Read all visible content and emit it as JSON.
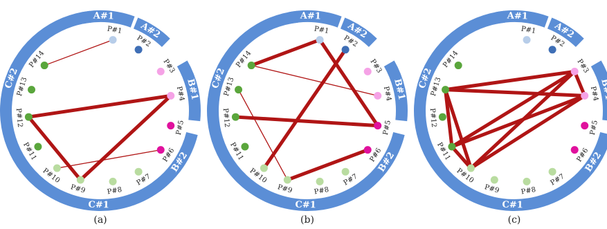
{
  "colors": {
    "band": "#5b8ed6",
    "band_text": "#ffffff",
    "edge": "#b01515",
    "node_green": "#5aa63c",
    "node_lightgreen": "#b9dca0",
    "node_lightblue": "#b7cde9",
    "node_blue": "#3f6fb6",
    "node_pink": "#f5a2e6",
    "node_magenta": "#e0119d"
  },
  "nodes": [
    {
      "id": "P#1",
      "label": "P#1",
      "color": "node_lightblue"
    },
    {
      "id": "P#2",
      "label": "P#2",
      "color": "node_blue"
    },
    {
      "id": "P#3",
      "label": "P#3",
      "color": "node_pink"
    },
    {
      "id": "P#4",
      "label": "P#4",
      "color": "node_pink"
    },
    {
      "id": "P#5",
      "label": "P#5",
      "color": "node_magenta"
    },
    {
      "id": "P#6",
      "label": "P#6",
      "color": "node_magenta"
    },
    {
      "id": "P#7",
      "label": "P#7",
      "color": "node_lightgreen"
    },
    {
      "id": "P#8",
      "label": "P#8",
      "color": "node_lightgreen"
    },
    {
      "id": "P#9",
      "label": "P#9",
      "color": "node_lightgreen"
    },
    {
      "id": "P#10",
      "label": "P#10",
      "color": "node_lightgreen"
    },
    {
      "id": "P#11",
      "label": "P#11",
      "color": "node_green"
    },
    {
      "id": "P#12",
      "label": "P#12",
      "color": "node_green"
    },
    {
      "id": "P#13",
      "label": "P#13",
      "color": "node_green"
    },
    {
      "id": "P#14",
      "label": "P#14",
      "color": "node_green"
    }
  ],
  "groups": [
    {
      "label": "A#1"
    },
    {
      "label": "A#2"
    },
    {
      "label": "B#1"
    },
    {
      "label": "B#2"
    },
    {
      "label": "C#1"
    },
    {
      "label": "C#2"
    }
  ],
  "panels": [
    {
      "caption": "(a)",
      "edges": [
        {
          "from": "P#14",
          "to": "P#1",
          "weight": "thin"
        },
        {
          "from": "P#12",
          "to": "P#4",
          "weight": "thick"
        },
        {
          "from": "P#12",
          "to": "P#9",
          "weight": "thick"
        },
        {
          "from": "P#9",
          "to": "P#4",
          "weight": "thick"
        },
        {
          "from": "P#10",
          "to": "P#6",
          "weight": "thin"
        }
      ]
    },
    {
      "caption": "(b)",
      "edges": [
        {
          "from": "P#14",
          "to": "P#1",
          "weight": "thick"
        },
        {
          "from": "P#1",
          "to": "P#5",
          "weight": "thick"
        },
        {
          "from": "P#12",
          "to": "P#5",
          "weight": "thick"
        },
        {
          "from": "P#2",
          "to": "P#10",
          "weight": "thick"
        },
        {
          "from": "P#13",
          "to": "P#9",
          "weight": "thin"
        },
        {
          "from": "P#14",
          "to": "P#4",
          "weight": "thin"
        },
        {
          "from": "P#9",
          "to": "P#6",
          "weight": "thick"
        }
      ]
    },
    {
      "caption": "(c)",
      "edges": [
        {
          "from": "P#13",
          "to": "P#3",
          "weight": "thick"
        },
        {
          "from": "P#13",
          "to": "P#4",
          "weight": "thick"
        },
        {
          "from": "P#13",
          "to": "P#11",
          "weight": "thick"
        },
        {
          "from": "P#13",
          "to": "P#10",
          "weight": "thick"
        },
        {
          "from": "P#11",
          "to": "P#3",
          "weight": "thick"
        },
        {
          "from": "P#11",
          "to": "P#4",
          "weight": "thick"
        },
        {
          "from": "P#11",
          "to": "P#10",
          "weight": "thick"
        },
        {
          "from": "P#10",
          "to": "P#3",
          "weight": "thick"
        },
        {
          "from": "P#10",
          "to": "P#4",
          "weight": "thick"
        },
        {
          "from": "P#3",
          "to": "P#4",
          "weight": "thick"
        }
      ]
    }
  ]
}
